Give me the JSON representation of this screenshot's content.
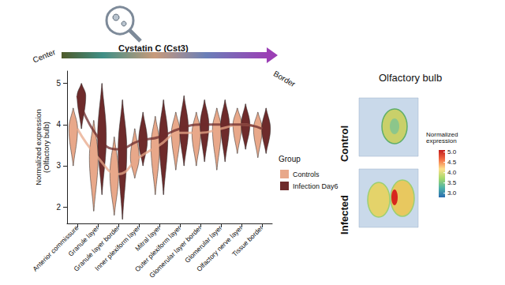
{
  "chart_data": {
    "type": "violin",
    "title": "Cystatin C (Cst3)",
    "gradient_labels": [
      "Center",
      "Border"
    ],
    "y_label": "Normalized expression\n(Olfactory bulb)",
    "categories": [
      "Anterior commissure",
      "Granule layer",
      "Granule layer border",
      "Inner plexiform layer",
      "Mitral layer",
      "Outer plexiform layer",
      "Glomerular layer border",
      "Glomerular layer",
      "Olfactory nerve layer",
      "Tissue border"
    ],
    "legend_title": "Group",
    "legend": "right",
    "series": [
      {
        "name": "Controls",
        "color": "#E8A88A",
        "min": [
          3.0,
          1.9,
          1.8,
          2.7,
          2.3,
          2.9,
          3.0,
          2.9,
          3.3,
          3.2
        ],
        "median": [
          3.9,
          3.2,
          2.8,
          3.2,
          3.5,
          3.8,
          3.8,
          3.9,
          4.0,
          3.9
        ],
        "max": [
          4.4,
          4.1,
          3.7,
          3.9,
          4.2,
          4.3,
          4.3,
          4.4,
          4.4,
          4.3
        ]
      },
      {
        "name": "Infection Day6",
        "color": "#6E2B2B",
        "min": [
          3.9,
          2.3,
          1.7,
          3.0,
          2.3,
          3.0,
          3.1,
          3.1,
          3.4,
          3.3
        ],
        "median": [
          4.7,
          3.7,
          3.4,
          3.6,
          3.7,
          3.9,
          4.0,
          4.0,
          4.0,
          3.9
        ],
        "max": [
          5.0,
          5.0,
          4.6,
          4.3,
          4.6,
          4.7,
          4.6,
          4.6,
          4.5,
          4.4
        ]
      }
    ],
    "ylim": [
      1.6,
      5.3
    ],
    "yticks": [
      2,
      3,
      4,
      5
    ],
    "grid": false,
    "panel": {
      "title": "Olfactory bulb",
      "rows": [
        "Control",
        "Infected"
      ],
      "colorbar": {
        "title": "Normalized\nexpression",
        "range": [
          2.8,
          5.1
        ],
        "ticks": [
          {
            "value": 3,
            "label": "3.0"
          },
          {
            "value": 3.5,
            "label": "3.5"
          },
          {
            "value": 4,
            "label": "4.0"
          },
          {
            "value": 4.5,
            "label": "4.5"
          },
          {
            "value": 5,
            "label": "5.0"
          }
        ],
        "colors": [
          "#2b6cb0",
          "#4fb3a9",
          "#a6d96a",
          "#fee08b",
          "#f46d43",
          "#c21d1d"
        ]
      }
    }
  }
}
